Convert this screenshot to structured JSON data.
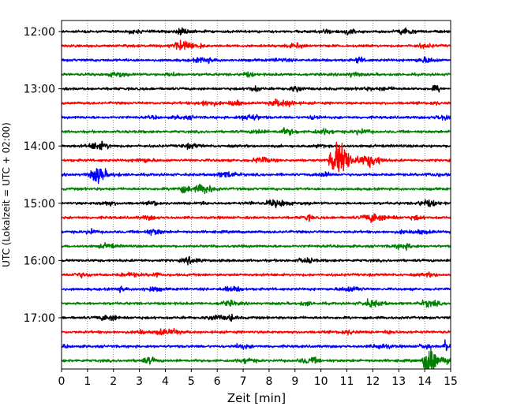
{
  "chart_data": {
    "type": "line",
    "chart_kind": "helicorder seismogram",
    "xlabel": "Zeit  [min]",
    "ylabel": "UTC (Lokalzeit = UTC + 02:00)",
    "xlim": [
      0,
      15
    ],
    "x_ticks": [
      "0",
      "1",
      "2",
      "3",
      "4",
      "5",
      "6",
      "7",
      "8",
      "9",
      "10",
      "11",
      "12",
      "13",
      "14",
      "15"
    ],
    "y_time_labels": [
      "12:00",
      "13:00",
      "14:00",
      "15:00",
      "16:00",
      "17:00"
    ],
    "trace_interval_minutes": 15,
    "trace_count": 24,
    "grid": "vertical dotted at each minute",
    "colors": [
      "#000000",
      "#ff0000",
      "#0000ff",
      "#008000"
    ],
    "events": [
      {
        "trace": 9,
        "x_start": 10.3,
        "x_end": 11.9,
        "amplitude": "large",
        "color": "#0000ff"
      },
      {
        "trace": 10,
        "x_start": 1.1,
        "x_end": 2.3,
        "amplitude": "medium",
        "color": "#008000"
      },
      {
        "trace": 23,
        "x_start": 13.9,
        "x_end": 15.0,
        "amplitude": "large",
        "color": "#008000"
      },
      {
        "trace": 22,
        "x_start": 14.7,
        "x_end": 15.0,
        "amplitude": "medium",
        "color": "#0000ff"
      },
      {
        "trace": 2,
        "x_start": 11.3,
        "x_end": 11.9,
        "amplitude": "small",
        "color": "#0000ff"
      },
      {
        "trace": 12,
        "x_start": 7.8,
        "x_end": 9.6,
        "amplitude": "small",
        "color": "#0000ff"
      }
    ]
  }
}
